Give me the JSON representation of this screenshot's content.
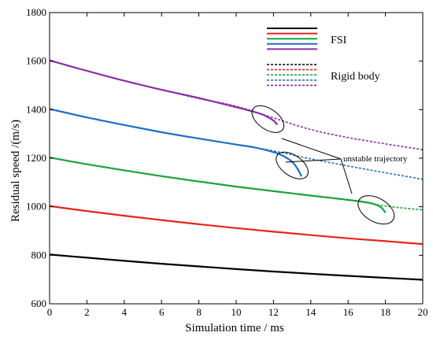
{
  "chart_data": {
    "type": "line",
    "xlabel": "Simulation time / ms",
    "ylabel": "Residual speed /(m/s)",
    "xlim": [
      0,
      20
    ],
    "ylim": [
      600,
      1800
    ],
    "xticks": [
      0,
      2,
      4,
      6,
      8,
      10,
      12,
      14,
      16,
      18,
      20
    ],
    "yticks": [
      600,
      800,
      1000,
      1200,
      1400,
      1600,
      1800
    ],
    "grid": false,
    "legend_groups": [
      {
        "label": "FSI",
        "line_style": "solid",
        "colors": [
          "#000000",
          "#e8221e",
          "#1aa33c",
          "#1f6fc4",
          "#8a2ea6"
        ]
      },
      {
        "label": "Rigid body",
        "line_style": "dotted",
        "colors": [
          "#000000",
          "#e8221e",
          "#1aa33c",
          "#1f6fc4",
          "#8a2ea6"
        ]
      }
    ],
    "annotation": "unstable trajectory",
    "series": [
      {
        "color": "#000000",
        "fsi": {
          "x": [
            0,
            2,
            4,
            6,
            8,
            10,
            12,
            14,
            16,
            18,
            20
          ],
          "y": [
            803,
            790,
            777,
            765,
            754,
            743,
            733,
            724,
            715,
            707,
            699
          ]
        },
        "rigid": {
          "x": [
            0,
            2,
            4,
            6,
            8,
            10,
            12,
            14,
            16,
            18,
            20
          ],
          "y": [
            803,
            790,
            777,
            765,
            754,
            743,
            733,
            724,
            715,
            707,
            699
          ]
        }
      },
      {
        "color": "#e8221e",
        "fsi": {
          "x": [
            0,
            2,
            4,
            6,
            8,
            10,
            12,
            14,
            16,
            18,
            20
          ],
          "y": [
            1003,
            982,
            963,
            945,
            928,
            912,
            897,
            883,
            870,
            858,
            846
          ]
        },
        "rigid": {
          "x": [
            0,
            2,
            4,
            6,
            8,
            10,
            12,
            14,
            16,
            18,
            20
          ],
          "y": [
            1003,
            982,
            963,
            945,
            928,
            912,
            897,
            883,
            870,
            858,
            846
          ]
        }
      },
      {
        "color": "#1aa33c",
        "fsi": {
          "x": [
            0,
            2,
            4,
            6,
            8,
            10,
            12,
            14,
            16,
            17,
            17.5,
            17.8,
            18
          ],
          "y": [
            1203,
            1175,
            1150,
            1126,
            1104,
            1083,
            1064,
            1046,
            1028,
            1018,
            1008,
            995,
            975
          ]
        },
        "rigid": {
          "x": [
            0,
            2,
            4,
            6,
            8,
            10,
            12,
            14,
            16,
            18,
            20
          ],
          "y": [
            1203,
            1175,
            1150,
            1126,
            1104,
            1083,
            1064,
            1046,
            1029,
            1003,
            987
          ]
        }
      },
      {
        "color": "#1f6fc4",
        "fsi": {
          "x": [
            0,
            2,
            4,
            6,
            8,
            10,
            11,
            12,
            12.5,
            13,
            13.3,
            13.5
          ],
          "y": [
            1403,
            1368,
            1337,
            1307,
            1281,
            1256,
            1244,
            1225,
            1210,
            1185,
            1155,
            1125
          ]
        },
        "rigid": {
          "x": [
            0,
            2,
            4,
            6,
            8,
            10,
            12,
            14,
            16,
            18,
            20
          ],
          "y": [
            1403,
            1368,
            1337,
            1307,
            1281,
            1256,
            1230,
            1197,
            1168,
            1140,
            1113
          ]
        }
      },
      {
        "color": "#8a2ea6",
        "fsi": {
          "x": [
            0,
            2,
            4,
            6,
            8,
            10,
            11,
            11.5,
            12,
            12.2
          ],
          "y": [
            1603,
            1560,
            1519,
            1482,
            1448,
            1410,
            1390,
            1377,
            1355,
            1338
          ]
        },
        "rigid": {
          "x": [
            0,
            2,
            4,
            6,
            8,
            10,
            12,
            14,
            16,
            18,
            20
          ],
          "y": [
            1603,
            1560,
            1519,
            1482,
            1446,
            1414,
            1366,
            1318,
            1285,
            1259,
            1235
          ]
        }
      }
    ]
  }
}
